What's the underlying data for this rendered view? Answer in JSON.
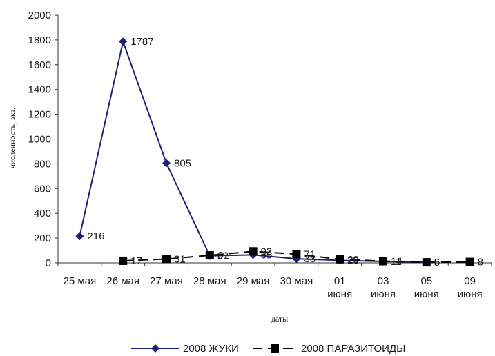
{
  "chart_data": {
    "type": "line",
    "title": "",
    "xlabel": "даты",
    "ylabel": "численность, экз.",
    "ylim": [
      0,
      2000
    ],
    "yticks": [
      0,
      200,
      400,
      600,
      800,
      1000,
      1200,
      1400,
      1600,
      1800,
      2000
    ],
    "categories": [
      [
        "25 мая"
      ],
      [
        "26 мая"
      ],
      [
        "27 мая"
      ],
      [
        "28 мая"
      ],
      [
        "29 мая"
      ],
      [
        "30 мая"
      ],
      [
        "01",
        "июня"
      ],
      [
        "03",
        "июня"
      ],
      [
        "05",
        "июня"
      ],
      [
        "09",
        "июня"
      ]
    ],
    "series": [
      {
        "name": "2008 ЖУКИ",
        "color": "#1f1f7a",
        "marker": "diamond",
        "dash": "solid",
        "values": [
          216,
          1787,
          805,
          57,
          65,
          33,
          20,
          11,
          6,
          null
        ],
        "labels": [
          "216",
          "1787",
          "805",
          "57",
          "65",
          "33",
          "20",
          "11",
          "6",
          ""
        ]
      },
      {
        "name": "2008 ПАРАЗИТОИДЫ",
        "color": "#000000",
        "marker": "square",
        "dash": "dashed",
        "values": [
          null,
          17,
          31,
          61,
          93,
          71,
          29,
          14,
          5,
          8
        ],
        "labels": [
          "",
          "17",
          "31",
          "61",
          "93",
          "71",
          "29",
          "14",
          "5",
          "8"
        ]
      }
    ],
    "legend": "bottom",
    "grid": false
  }
}
